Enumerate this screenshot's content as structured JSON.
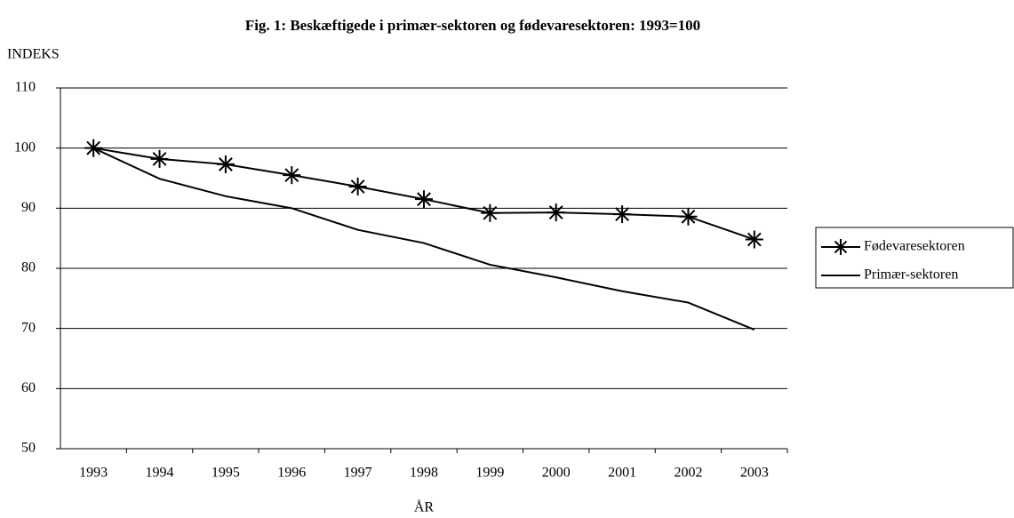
{
  "chart_data": {
    "type": "line",
    "title": "Fig. 1: Beskæftigede i primær-sektoren og fødevaresektoren: 1993=100",
    "y_label": "INDEKS",
    "x_label": "ÅR",
    "categories": [
      "1993",
      "1994",
      "1995",
      "1996",
      "1997",
      "1998",
      "1999",
      "2000",
      "2001",
      "2002",
      "2003"
    ],
    "series": [
      {
        "name": "Fødevaresektoren",
        "color": "#000000",
        "marker": "asterisk",
        "values": [
          100,
          98.2,
          97.3,
          95.5,
          93.6,
          91.5,
          89.2,
          89.3,
          89.0,
          88.6,
          84.8
        ]
      },
      {
        "name": "Primær-sektoren",
        "color": "#000000",
        "marker": "none",
        "values": [
          100,
          94.9,
          92.0,
          90.0,
          86.4,
          84.2,
          80.6,
          78.5,
          76.2,
          74.3,
          69.8
        ]
      }
    ],
    "ylim": [
      50,
      110
    ],
    "yticks": [
      50,
      60,
      70,
      80,
      90,
      100,
      110
    ],
    "grid": true,
    "legend": "right"
  }
}
